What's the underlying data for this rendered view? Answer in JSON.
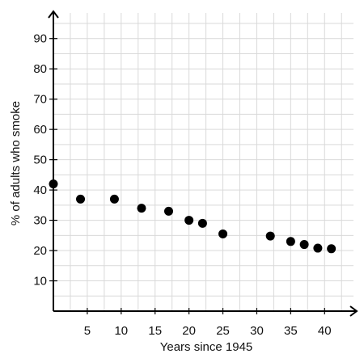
{
  "chart_data": {
    "type": "scatter",
    "title": "",
    "xlabel": "Years since 1945",
    "ylabel": "% of adults who smoke",
    "xlim": [
      0,
      44.5
    ],
    "ylim": [
      0,
      99
    ],
    "grid": true,
    "x_ticks": [
      5,
      10,
      15,
      20,
      25,
      30,
      35,
      40
    ],
    "y_ticks": [
      10,
      20,
      30,
      40,
      50,
      60,
      70,
      80,
      90
    ],
    "x_tick_labels": [
      "5",
      "10",
      "15",
      "20",
      "25",
      "30",
      "35",
      "40"
    ],
    "y_tick_labels": [
      "10",
      "20",
      "30",
      "40",
      "50",
      "60",
      "70",
      "80",
      "90"
    ],
    "series": [
      {
        "x": [
          0,
          4,
          9,
          13,
          17,
          20,
          22,
          25,
          32,
          35,
          37,
          39,
          41
        ],
        "y": [
          42,
          37,
          37,
          34,
          33,
          30,
          29,
          25.5,
          24.8,
          23,
          22,
          20.8,
          20.6
        ]
      }
    ]
  }
}
